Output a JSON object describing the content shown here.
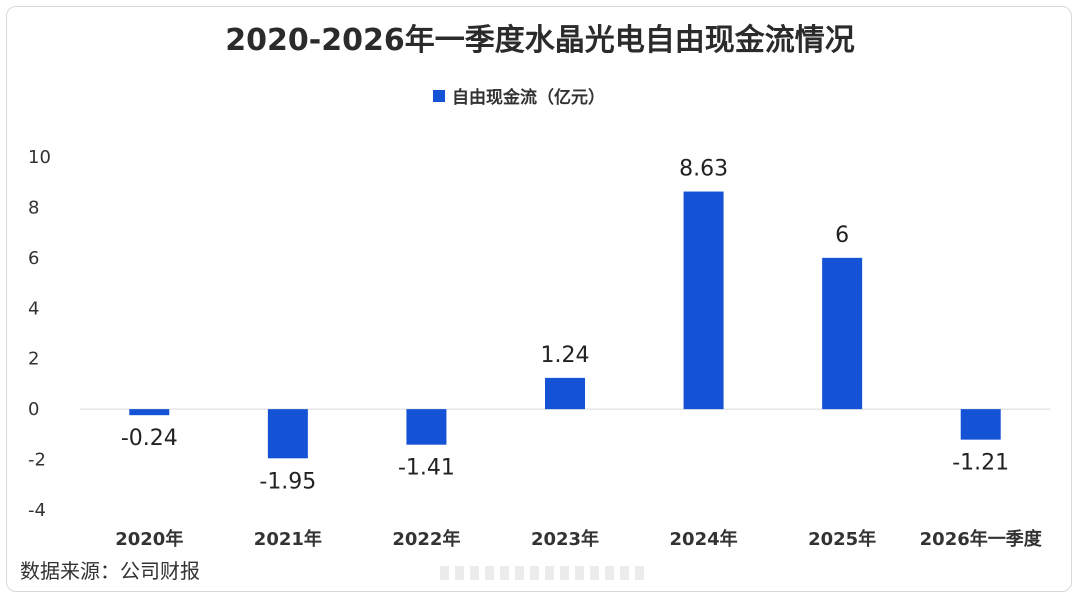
{
  "chart_data": {
    "type": "bar",
    "title": "2020-2026年一季度水晶光电自由现金流情况",
    "legend": [
      "自由现金流（亿元）"
    ],
    "categories": [
      "2020年",
      "2021年",
      "2022年",
      "2023年",
      "2024年",
      "2025年",
      "2026年一季度"
    ],
    "series": [
      {
        "name": "自由现金流（亿元）",
        "values": [
          -0.24,
          -1.95,
          -1.41,
          1.24,
          8.63,
          6,
          -1.21
        ]
      }
    ],
    "data_labels": [
      "-0.24",
      "-1.95",
      "-1.41",
      "1.24",
      "8.63",
      "6",
      "-1.21"
    ],
    "y_ticks": [
      10,
      8,
      6,
      4,
      2,
      0,
      -2,
      -4
    ],
    "ylim": [
      -4,
      10
    ],
    "xlabel": "",
    "ylabel": "",
    "legend_position": "top-center",
    "grid": false,
    "bar_color": "#1553d6",
    "axis_color": "#d9d9d9"
  },
  "footer": {
    "source": "数据来源：公司财报"
  }
}
